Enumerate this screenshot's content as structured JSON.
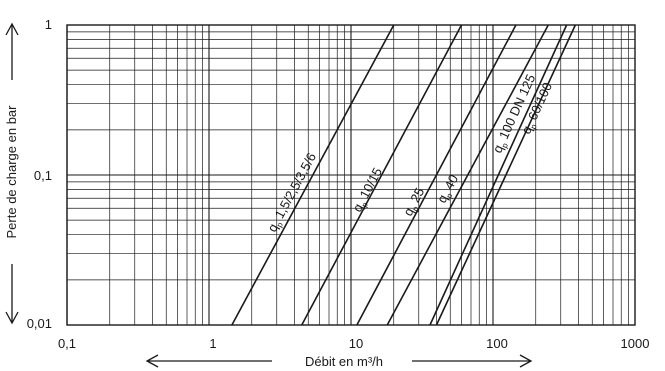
{
  "chart_data": {
    "type": "line",
    "scale": {
      "x": "log",
      "y": "log"
    },
    "xlim": [
      0.1,
      1000
    ],
    "ylim": [
      0.01,
      1
    ],
    "grid": true,
    "x_ticks": [
      "0,1",
      "1",
      "10",
      "100",
      "1000"
    ],
    "y_ticks": [
      "0,01",
      "0,1",
      "1"
    ],
    "xlabel": "Débit en m³/h",
    "ylabel": "Perte de charge en bar",
    "label_prefix": "q",
    "label_sub": "p",
    "series": [
      {
        "name": "1,5/2,5/3,5/6",
        "points": [
          [
            1.45,
            0.01
          ],
          [
            20,
            1
          ]
        ]
      },
      {
        "name": "10/15",
        "points": [
          [
            4.5,
            0.01
          ],
          [
            60,
            1
          ]
        ]
      },
      {
        "name": "25",
        "points": [
          [
            11,
            0.01
          ],
          [
            145,
            1
          ]
        ]
      },
      {
        "name": "40",
        "points": [
          [
            18,
            0.01
          ],
          [
            245,
            1
          ]
        ]
      },
      {
        "name": "100 DN 125",
        "points": [
          [
            36,
            0.01
          ],
          [
            330,
            1
          ]
        ]
      },
      {
        "name": "60/100",
        "points": [
          [
            40,
            0.01
          ],
          [
            380,
            1
          ]
        ]
      }
    ]
  }
}
